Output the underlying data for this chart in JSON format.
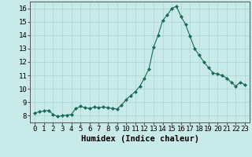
{
  "x": [
    0,
    0.5,
    1,
    1.5,
    2,
    2.5,
    3,
    3.5,
    4,
    4.5,
    5,
    5.5,
    6,
    6.5,
    7,
    7.5,
    8,
    8.5,
    9,
    9.5,
    10,
    10.5,
    11,
    11.5,
    12,
    12.5,
    13,
    13.5,
    14,
    14.5,
    15,
    15.5,
    16,
    16.5,
    17,
    17.5,
    18,
    18.5,
    19,
    19.5,
    20,
    20.5,
    21,
    21.5,
    22,
    22.5,
    23
  ],
  "y": [
    8.2,
    8.3,
    8.35,
    8.4,
    8.1,
    7.95,
    8.0,
    8.05,
    8.1,
    8.55,
    8.7,
    8.6,
    8.55,
    8.65,
    8.6,
    8.65,
    8.6,
    8.55,
    8.5,
    8.8,
    9.2,
    9.5,
    9.8,
    10.2,
    10.8,
    11.5,
    13.1,
    14.0,
    15.1,
    15.5,
    16.0,
    16.15,
    15.4,
    14.8,
    13.9,
    13.0,
    12.5,
    12.0,
    11.6,
    11.2,
    11.1,
    11.0,
    10.8,
    10.5,
    10.2,
    10.5,
    10.3
  ],
  "xlabel": "Humidex (Indice chaleur)",
  "xlim": [
    -0.5,
    23.5
  ],
  "ylim": [
    7.5,
    16.5
  ],
  "yticks": [
    8,
    9,
    10,
    11,
    12,
    13,
    14,
    15,
    16
  ],
  "xticks": [
    0,
    1,
    2,
    3,
    4,
    5,
    6,
    7,
    8,
    9,
    10,
    11,
    12,
    13,
    14,
    15,
    16,
    17,
    18,
    19,
    20,
    21,
    22,
    23
  ],
  "line_color": "#1a6b5a",
  "marker": "D",
  "marker_size": 2.0,
  "bg_color": "#c8eae8",
  "grid_color": "#b0d8d4",
  "xlabel_fontsize": 7.5,
  "tick_fontsize": 6.5
}
